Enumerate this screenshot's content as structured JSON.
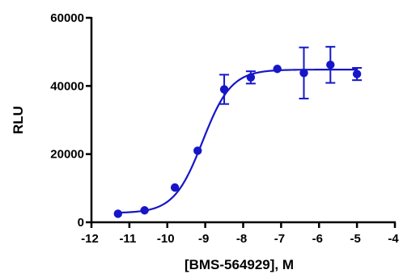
{
  "chart_data": {
    "type": "scatter",
    "xlabel": "[BMS-564929], M",
    "ylabel": "RLU",
    "xlim": [
      -12,
      -4
    ],
    "ylim": [
      0,
      60000
    ],
    "x_ticks": [
      "-12",
      "-11",
      "-10",
      "-9",
      "-8",
      "-7",
      "-6",
      "-5",
      "-4"
    ],
    "y_ticks": [
      "0",
      "20000",
      "40000",
      "60000"
    ],
    "grid": false,
    "series": [
      {
        "points": [
          {
            "x": -11.3,
            "y": 2500,
            "err": 0
          },
          {
            "x": -10.6,
            "y": 3500,
            "err": 0
          },
          {
            "x": -9.8,
            "y": 10200,
            "err": 0
          },
          {
            "x": -9.2,
            "y": 21000,
            "err": 0
          },
          {
            "x": -8.5,
            "y": 39000,
            "err": 4300
          },
          {
            "x": -7.8,
            "y": 42500,
            "err": 1800
          },
          {
            "x": -7.1,
            "y": 45000,
            "err": 0
          },
          {
            "x": -6.4,
            "y": 43800,
            "err": 7500
          },
          {
            "x": -5.7,
            "y": 46200,
            "err": 5300
          },
          {
            "x": -5.0,
            "y": 43500,
            "err": 1800
          }
        ],
        "fit": {
          "model": "four-parameter logistic",
          "bottom": 2700,
          "top": 44800,
          "logEC50": -9.07,
          "hill": 1.15,
          "x_range": [
            -11.3,
            -5.0
          ]
        },
        "color": "#1616c8"
      }
    ]
  }
}
